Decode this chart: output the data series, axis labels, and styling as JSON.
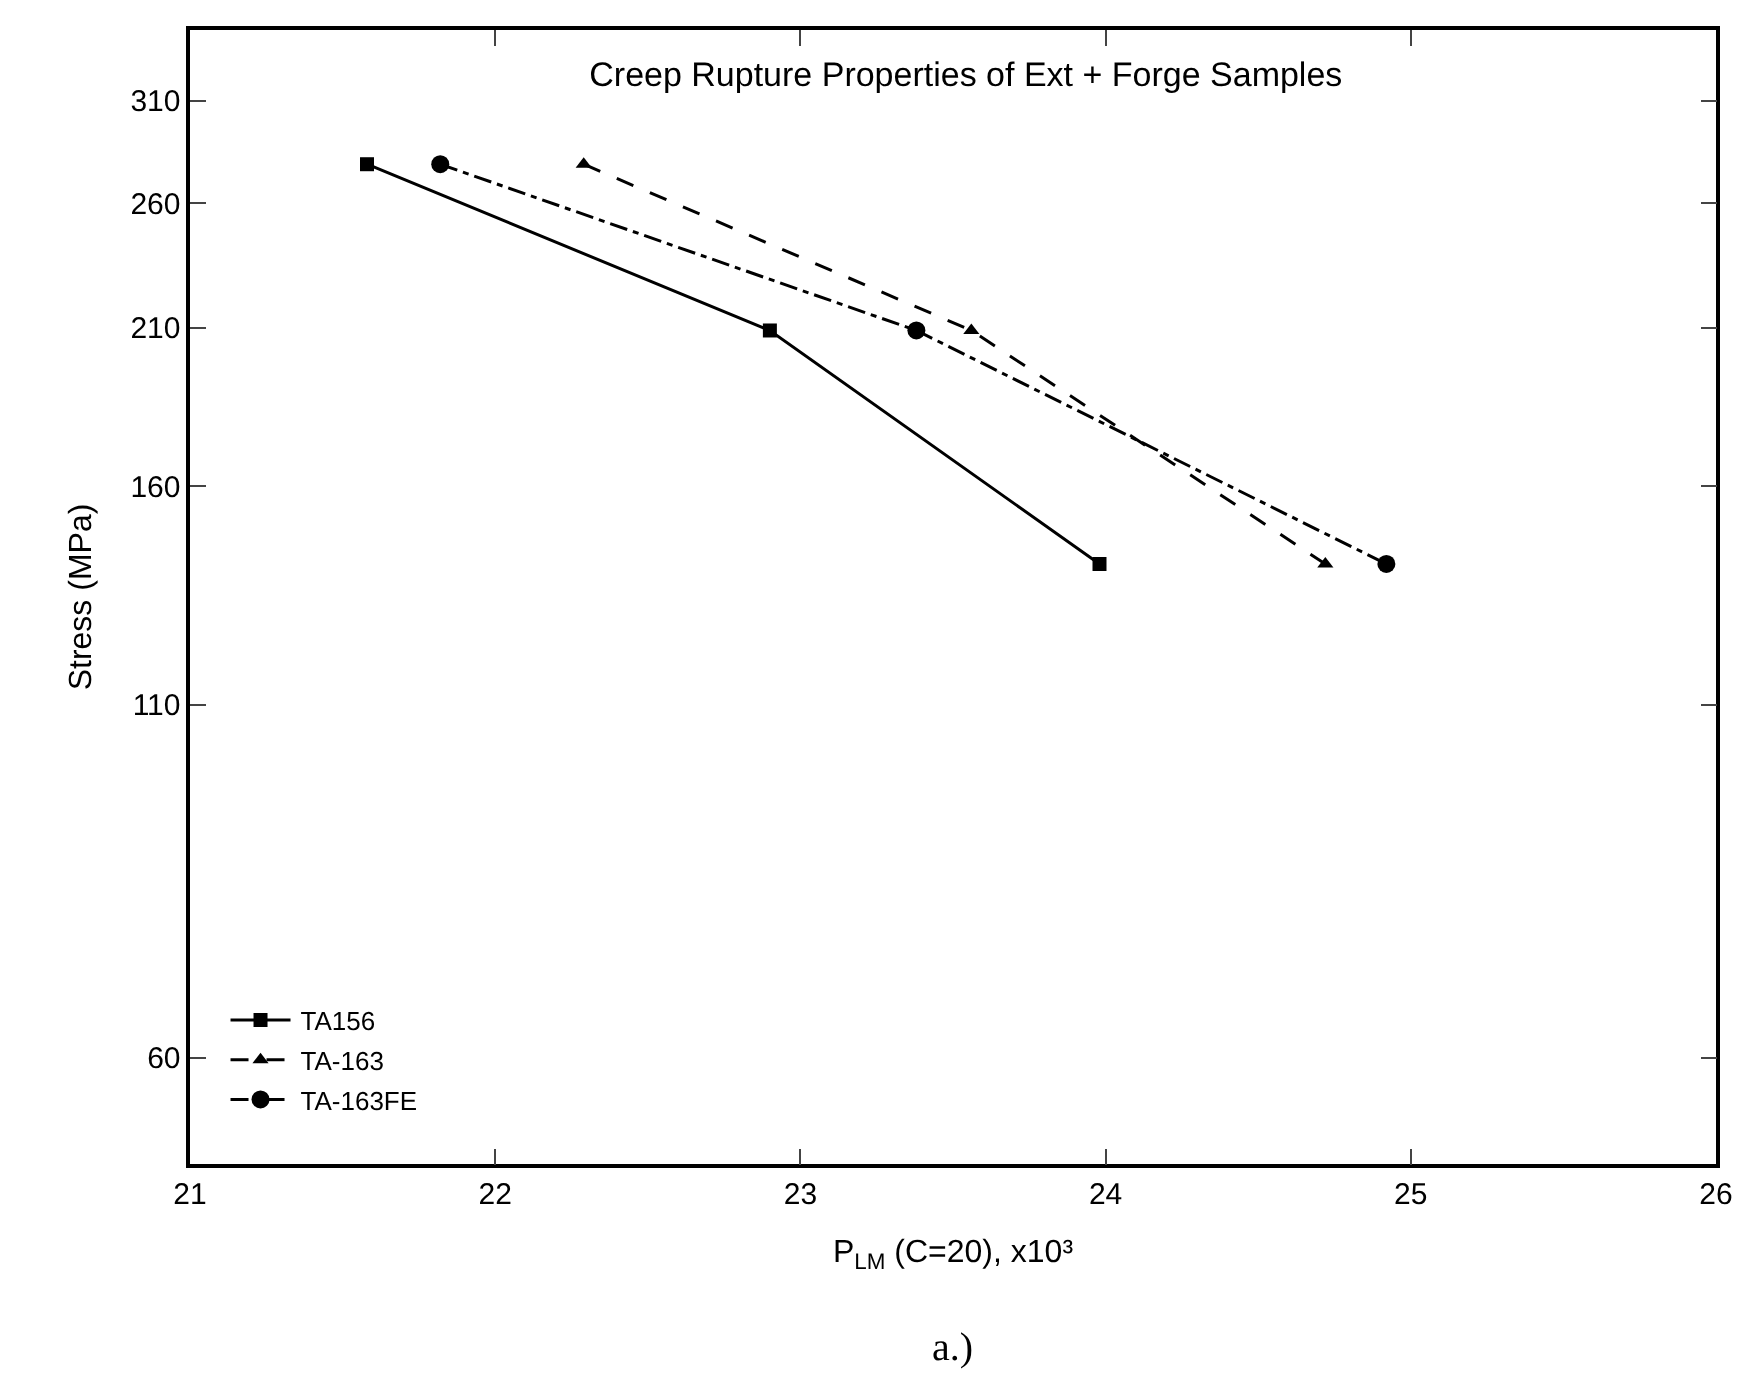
{
  "chart_data": {
    "type": "line",
    "title": "Creep Rupture Properties of Ext + Forge Samples",
    "xlabel": "P$_{LM}$ (C=20), x10³",
    "ylabel": "Stress (MPa)",
    "log": "y",
    "xlim": [
      21,
      26
    ],
    "xticks": [
      21,
      22,
      23,
      24,
      25,
      26
    ],
    "ylim": [
      50,
      350
    ],
    "yticks": [
      60,
      110,
      160,
      210,
      260,
      310
    ],
    "legend": "bottom left",
    "series": [
      {
        "name": "TA156",
        "color": "#000000",
        "x": [
          21.58,
          22.9,
          23.98
        ],
        "values": [
          278,
          209,
          140
        ],
        "marker": "square",
        "line_style": "solid"
      },
      {
        "name": "TA-163",
        "color": "#000000",
        "x": [
          22.29,
          23.56,
          24.72
        ],
        "values": [
          278,
          209,
          140
        ],
        "marker": "triangle",
        "line_style": "dashed"
      },
      {
        "name": "TA-163FE",
        "color": "#000000",
        "x": [
          21.82,
          23.38,
          24.92
        ],
        "values": [
          278,
          209,
          140
        ],
        "marker": "circle",
        "line_style": "dashdot"
      }
    ],
    "annotations": [
      "a.)"
    ]
  }
}
